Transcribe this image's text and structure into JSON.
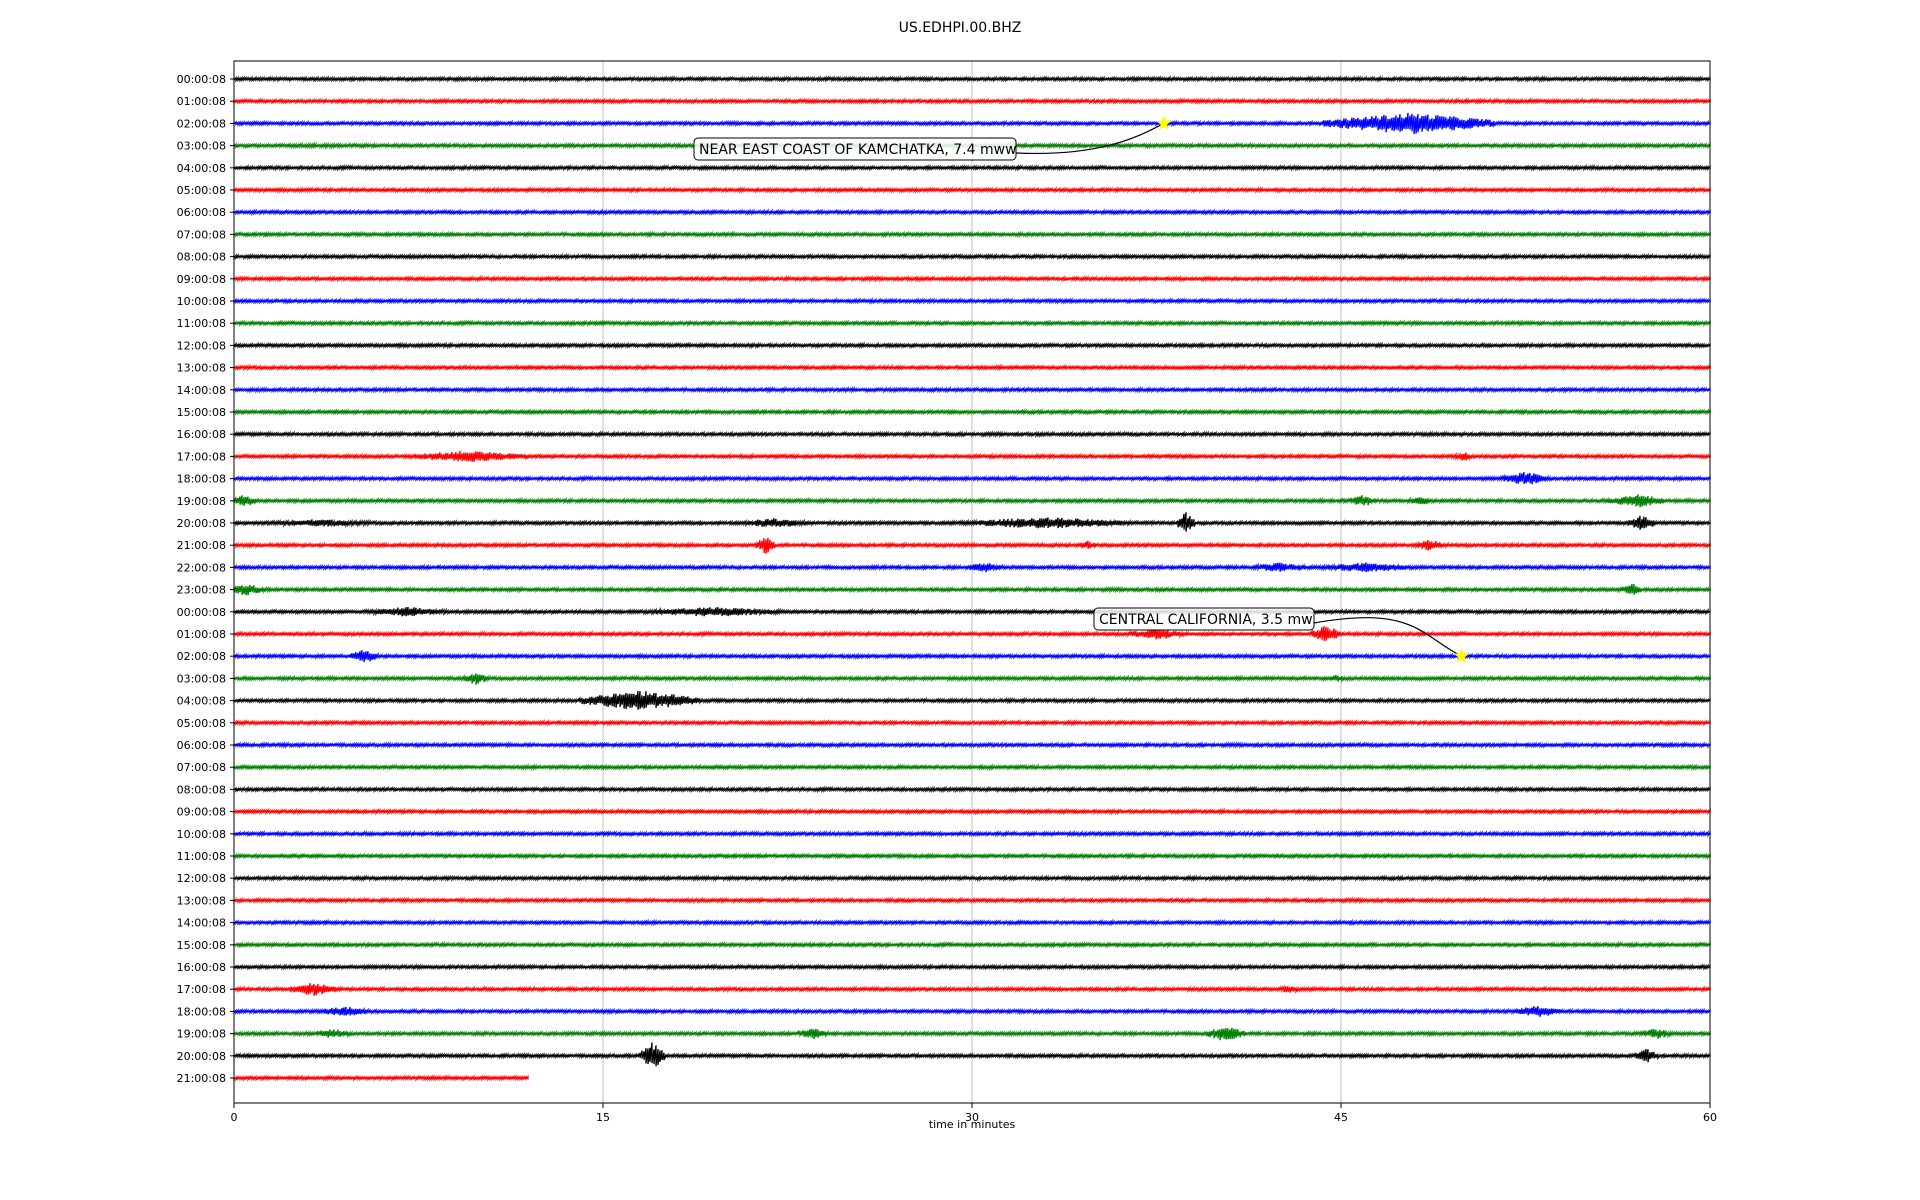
{
  "chart_data": {
    "type": "line",
    "title": "US.EDHPI.00.BHZ",
    "xlabel": "time in minutes",
    "ylabel": "",
    "xlim": [
      0,
      60
    ],
    "x_ticks": [
      0,
      15,
      30,
      45,
      60
    ],
    "grid": "vertical",
    "row_labels": [
      "00:00:08",
      "01:00:08",
      "02:00:08",
      "03:00:08",
      "04:00:08",
      "05:00:08",
      "06:00:08",
      "07:00:08",
      "08:00:08",
      "09:00:08",
      "10:00:08",
      "11:00:08",
      "12:00:08",
      "13:00:08",
      "14:00:08",
      "15:00:08",
      "16:00:08",
      "17:00:08",
      "18:00:08",
      "19:00:08",
      "20:00:08",
      "21:00:08",
      "22:00:08",
      "23:00:08",
      "00:00:08",
      "01:00:08",
      "02:00:08",
      "03:00:08",
      "04:00:08",
      "05:00:08",
      "06:00:08",
      "07:00:08",
      "08:00:08",
      "09:00:08",
      "10:00:08",
      "11:00:08",
      "12:00:08",
      "13:00:08",
      "14:00:08",
      "15:00:08",
      "16:00:08",
      "17:00:08",
      "18:00:08",
      "19:00:08",
      "20:00:08",
      "21:00:08"
    ],
    "row_colors": [
      "#000000",
      "#ff0000",
      "#0000ff",
      "#008000"
    ],
    "last_row_end_minute": 12,
    "events": [
      {
        "label": "NEAR EAST COAST OF KAMCHATKA, 7.4 mww",
        "row": 2,
        "minute": 37.8,
        "marker": "star",
        "marker_color": "#ffff00"
      },
      {
        "label": "CENTRAL CALIFORNIA, 3.5 mw",
        "row": 26,
        "minute": 49.9,
        "marker": "star",
        "marker_color": "#ffff00"
      }
    ],
    "bursts": [
      {
        "row": 2,
        "minute": 47.8,
        "amp": 11,
        "width": 3.5
      },
      {
        "row": 3,
        "minute": 3.5,
        "amp": 2,
        "width": 5
      },
      {
        "row": 17,
        "minute": 9.5,
        "amp": 6,
        "width": 2.5
      },
      {
        "row": 17,
        "minute": 50.0,
        "amp": 5,
        "width": 0.4
      },
      {
        "row": 18,
        "minute": 52.5,
        "amp": 7,
        "width": 1.0
      },
      {
        "row": 19,
        "minute": 0.4,
        "amp": 6,
        "width": 0.6
      },
      {
        "row": 19,
        "minute": 45.9,
        "amp": 6,
        "width": 0.6
      },
      {
        "row": 19,
        "minute": 48.2,
        "amp": 5,
        "width": 0.5
      },
      {
        "row": 19,
        "minute": 57.0,
        "amp": 7,
        "width": 1.2
      },
      {
        "row": 20,
        "minute": 3.5,
        "amp": 4,
        "width": 2.5
      },
      {
        "row": 20,
        "minute": 22.0,
        "amp": 5,
        "width": 1.5
      },
      {
        "row": 20,
        "minute": 33.0,
        "amp": 6,
        "width": 3.5
      },
      {
        "row": 20,
        "minute": 38.7,
        "amp": 11,
        "width": 0.4
      },
      {
        "row": 20,
        "minute": 57.2,
        "amp": 8,
        "width": 0.6
      },
      {
        "row": 21,
        "minute": 21.6,
        "amp": 10,
        "width": 0.4
      },
      {
        "row": 21,
        "minute": 34.7,
        "amp": 5,
        "width": 0.4
      },
      {
        "row": 21,
        "minute": 48.6,
        "amp": 6,
        "width": 0.6
      },
      {
        "row": 22,
        "minute": 30.5,
        "amp": 5,
        "width": 0.8
      },
      {
        "row": 22,
        "minute": 42.5,
        "amp": 5,
        "width": 1.2
      },
      {
        "row": 22,
        "minute": 46.0,
        "amp": 5,
        "width": 2.0
      },
      {
        "row": 23,
        "minute": 0.5,
        "amp": 6,
        "width": 0.8
      },
      {
        "row": 23,
        "minute": 56.8,
        "amp": 7,
        "width": 0.4
      },
      {
        "row": 24,
        "minute": 7.0,
        "amp": 5,
        "width": 1.8
      },
      {
        "row": 24,
        "minute": 19.5,
        "amp": 5,
        "width": 3.0
      },
      {
        "row": 25,
        "minute": 37.5,
        "amp": 6,
        "width": 1.2
      },
      {
        "row": 25,
        "minute": 44.4,
        "amp": 9,
        "width": 0.6
      },
      {
        "row": 26,
        "minute": 5.3,
        "amp": 7,
        "width": 0.6
      },
      {
        "row": 27,
        "minute": 9.8,
        "amp": 7,
        "width": 0.5
      },
      {
        "row": 27,
        "minute": 44.8,
        "amp": 4,
        "width": 0.4
      },
      {
        "row": 28,
        "minute": 16.5,
        "amp": 10,
        "width": 2.5
      },
      {
        "row": 41,
        "minute": 3.2,
        "amp": 7,
        "width": 1.0
      },
      {
        "row": 41,
        "minute": 42.9,
        "amp": 4,
        "width": 0.5
      },
      {
        "row": 42,
        "minute": 4.5,
        "amp": 5,
        "width": 1.2
      },
      {
        "row": 42,
        "minute": 53.0,
        "amp": 6,
        "width": 1.0
      },
      {
        "row": 43,
        "minute": 4.0,
        "amp": 5,
        "width": 0.8
      },
      {
        "row": 43,
        "minute": 23.5,
        "amp": 6,
        "width": 0.6
      },
      {
        "row": 43,
        "minute": 40.3,
        "amp": 8,
        "width": 0.8
      },
      {
        "row": 43,
        "minute": 57.8,
        "amp": 6,
        "width": 0.6
      },
      {
        "row": 44,
        "minute": 17.0,
        "amp": 14,
        "width": 0.5
      },
      {
        "row": 44,
        "minute": 57.4,
        "amp": 8,
        "width": 0.5
      }
    ]
  }
}
